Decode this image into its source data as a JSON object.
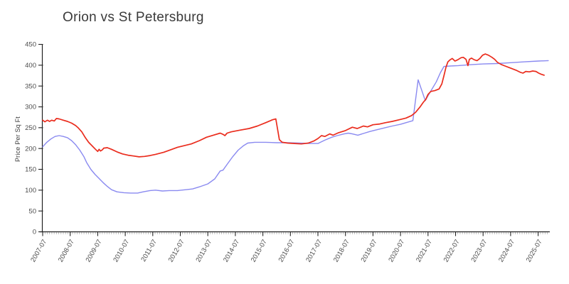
{
  "chart_data": {
    "type": "line",
    "title": "Orion vs St Petersburg",
    "ylabel": "Price Per Sq Ft",
    "xlabel": "",
    "ylim": [
      0,
      450
    ],
    "yticks": [
      0,
      50,
      100,
      150,
      200,
      250,
      300,
      350,
      400,
      450
    ],
    "xticks": [
      "2007-07",
      "2008-07",
      "2009-07",
      "2010-07",
      "2011-07",
      "2012-07",
      "2013-07",
      "2014-07",
      "2015-07",
      "2016-07",
      "2017-07",
      "2018-07",
      "2019-07",
      "2020-07",
      "2021-07",
      "2022-07",
      "2023-07",
      "2024-07",
      "2025-07"
    ],
    "x_minor_tick_unit": "month",
    "grid": false,
    "legend": "none",
    "style": "xkcd-sketch",
    "colors": {
      "axis": "#222222",
      "minor_tick": "#a8a8a8",
      "tick_label": "#4d4d4d",
      "title": "#3a3a3a",
      "background": "#ffffff"
    },
    "series": [
      {
        "name": "Orion",
        "color": "#ea2c1d",
        "points": [
          [
            2007.5,
            268
          ],
          [
            2007.58,
            264
          ],
          [
            2007.67,
            268
          ],
          [
            2007.75,
            265
          ],
          [
            2007.83,
            268
          ],
          [
            2007.92,
            266
          ],
          [
            2008.0,
            272
          ],
          [
            2008.1,
            271
          ],
          [
            2008.25,
            268
          ],
          [
            2008.4,
            265
          ],
          [
            2008.55,
            261
          ],
          [
            2008.7,
            255
          ],
          [
            2008.8,
            249
          ],
          [
            2008.92,
            240
          ],
          [
            2009.05,
            226
          ],
          [
            2009.17,
            215
          ],
          [
            2009.3,
            206
          ],
          [
            2009.42,
            198
          ],
          [
            2009.5,
            193
          ],
          [
            2009.55,
            198
          ],
          [
            2009.6,
            194
          ],
          [
            2009.67,
            197
          ],
          [
            2009.72,
            201
          ],
          [
            2009.85,
            202
          ],
          [
            2010.0,
            198
          ],
          [
            2010.2,
            192
          ],
          [
            2010.4,
            187
          ],
          [
            2010.6,
            184
          ],
          [
            2010.8,
            182
          ],
          [
            2011.0,
            180
          ],
          [
            2011.2,
            181
          ],
          [
            2011.4,
            183
          ],
          [
            2011.6,
            186
          ],
          [
            2011.9,
            191
          ],
          [
            2012.15,
            197
          ],
          [
            2012.4,
            203
          ],
          [
            2012.65,
            207
          ],
          [
            2012.9,
            211
          ],
          [
            2013.2,
            219
          ],
          [
            2013.45,
            227
          ],
          [
            2013.7,
            232
          ],
          [
            2013.95,
            237
          ],
          [
            2014.05,
            234
          ],
          [
            2014.12,
            231
          ],
          [
            2014.2,
            237
          ],
          [
            2014.35,
            240
          ],
          [
            2014.65,
            244
          ],
          [
            2015.0,
            248
          ],
          [
            2015.3,
            254
          ],
          [
            2015.6,
            262
          ],
          [
            2015.85,
            269
          ],
          [
            2015.97,
            271
          ],
          [
            2016.03,
            248
          ],
          [
            2016.1,
            221
          ],
          [
            2016.2,
            215
          ],
          [
            2016.4,
            213
          ],
          [
            2016.65,
            212
          ],
          [
            2016.9,
            211
          ],
          [
            2017.15,
            213
          ],
          [
            2017.35,
            218
          ],
          [
            2017.5,
            224
          ],
          [
            2017.63,
            231
          ],
          [
            2017.75,
            229
          ],
          [
            2017.93,
            235
          ],
          [
            2018.05,
            232
          ],
          [
            2018.25,
            238
          ],
          [
            2018.5,
            243
          ],
          [
            2018.75,
            251
          ],
          [
            2018.93,
            248
          ],
          [
            2019.15,
            254
          ],
          [
            2019.3,
            252
          ],
          [
            2019.5,
            257
          ],
          [
            2019.75,
            259
          ],
          [
            2019.95,
            262
          ],
          [
            2020.2,
            265
          ],
          [
            2020.45,
            269
          ],
          [
            2020.7,
            273
          ],
          [
            2020.9,
            279
          ],
          [
            2021.05,
            287
          ],
          [
            2021.2,
            299
          ],
          [
            2021.33,
            311
          ],
          [
            2021.42,
            318
          ],
          [
            2021.5,
            330
          ],
          [
            2021.6,
            337
          ],
          [
            2021.75,
            339
          ],
          [
            2021.9,
            343
          ],
          [
            2022.0,
            355
          ],
          [
            2022.08,
            375
          ],
          [
            2022.15,
            395
          ],
          [
            2022.22,
            408
          ],
          [
            2022.3,
            413
          ],
          [
            2022.38,
            416
          ],
          [
            2022.48,
            410
          ],
          [
            2022.58,
            413
          ],
          [
            2022.7,
            418
          ],
          [
            2022.78,
            419
          ],
          [
            2022.88,
            414
          ],
          [
            2022.95,
            399
          ],
          [
            2023.0,
            414
          ],
          [
            2023.08,
            417
          ],
          [
            2023.18,
            413
          ],
          [
            2023.28,
            411
          ],
          [
            2023.38,
            416
          ],
          [
            2023.48,
            424
          ],
          [
            2023.58,
            427
          ],
          [
            2023.7,
            424
          ],
          [
            2023.82,
            419
          ],
          [
            2023.92,
            414
          ],
          [
            2024.02,
            407
          ],
          [
            2024.15,
            402
          ],
          [
            2024.3,
            398
          ],
          [
            2024.5,
            393
          ],
          [
            2024.7,
            388
          ],
          [
            2024.85,
            383
          ],
          [
            2024.95,
            381
          ],
          [
            2025.05,
            385
          ],
          [
            2025.18,
            384
          ],
          [
            2025.3,
            386
          ],
          [
            2025.42,
            385
          ],
          [
            2025.52,
            381
          ],
          [
            2025.62,
            378
          ],
          [
            2025.72,
            376
          ]
        ]
      },
      {
        "name": "St Petersburg",
        "color": "#8a8af0",
        "points": [
          [
            2007.5,
            204
          ],
          [
            2007.65,
            215
          ],
          [
            2007.8,
            223
          ],
          [
            2007.95,
            229
          ],
          [
            2008.1,
            231
          ],
          [
            2008.25,
            229
          ],
          [
            2008.4,
            226
          ],
          [
            2008.55,
            219
          ],
          [
            2008.7,
            209
          ],
          [
            2008.85,
            196
          ],
          [
            2009.0,
            180
          ],
          [
            2009.1,
            166
          ],
          [
            2009.25,
            150
          ],
          [
            2009.4,
            138
          ],
          [
            2009.55,
            128
          ],
          [
            2009.7,
            118
          ],
          [
            2009.85,
            109
          ],
          [
            2010.0,
            101
          ],
          [
            2010.2,
            96
          ],
          [
            2010.45,
            94
          ],
          [
            2010.7,
            93
          ],
          [
            2010.95,
            93
          ],
          [
            2011.15,
            96
          ],
          [
            2011.4,
            99
          ],
          [
            2011.6,
            100
          ],
          [
            2011.85,
            98
          ],
          [
            2012.1,
            99
          ],
          [
            2012.4,
            99
          ],
          [
            2012.7,
            101
          ],
          [
            2012.95,
            103
          ],
          [
            2013.2,
            108
          ],
          [
            2013.5,
            115
          ],
          [
            2013.75,
            127
          ],
          [
            2013.95,
            146
          ],
          [
            2014.05,
            148
          ],
          [
            2014.2,
            162
          ],
          [
            2014.4,
            180
          ],
          [
            2014.6,
            196
          ],
          [
            2014.8,
            207
          ],
          [
            2014.95,
            213
          ],
          [
            2015.2,
            215
          ],
          [
            2015.6,
            215
          ],
          [
            2016.0,
            214
          ],
          [
            2016.4,
            214
          ],
          [
            2016.8,
            213
          ],
          [
            2017.2,
            212
          ],
          [
            2017.5,
            212
          ],
          [
            2017.75,
            220
          ],
          [
            2018.0,
            227
          ],
          [
            2018.2,
            231
          ],
          [
            2018.45,
            235
          ],
          [
            2018.6,
            237
          ],
          [
            2018.75,
            235
          ],
          [
            2018.95,
            232
          ],
          [
            2019.15,
            236
          ],
          [
            2019.4,
            241
          ],
          [
            2019.7,
            246
          ],
          [
            2019.95,
            250
          ],
          [
            2020.2,
            254
          ],
          [
            2020.5,
            258
          ],
          [
            2020.75,
            263
          ],
          [
            2020.95,
            267
          ],
          [
            2021.14,
            365
          ],
          [
            2021.4,
            315
          ],
          [
            2021.6,
            338
          ],
          [
            2021.8,
            360
          ],
          [
            2021.95,
            382
          ],
          [
            2022.08,
            397
          ],
          [
            2022.3,
            398
          ],
          [
            2022.6,
            399
          ],
          [
            2023.0,
            401
          ],
          [
            2023.5,
            403
          ],
          [
            2024.0,
            404
          ],
          [
            2024.5,
            406
          ],
          [
            2025.0,
            408
          ],
          [
            2025.5,
            410
          ],
          [
            2025.87,
            411
          ]
        ]
      }
    ]
  }
}
